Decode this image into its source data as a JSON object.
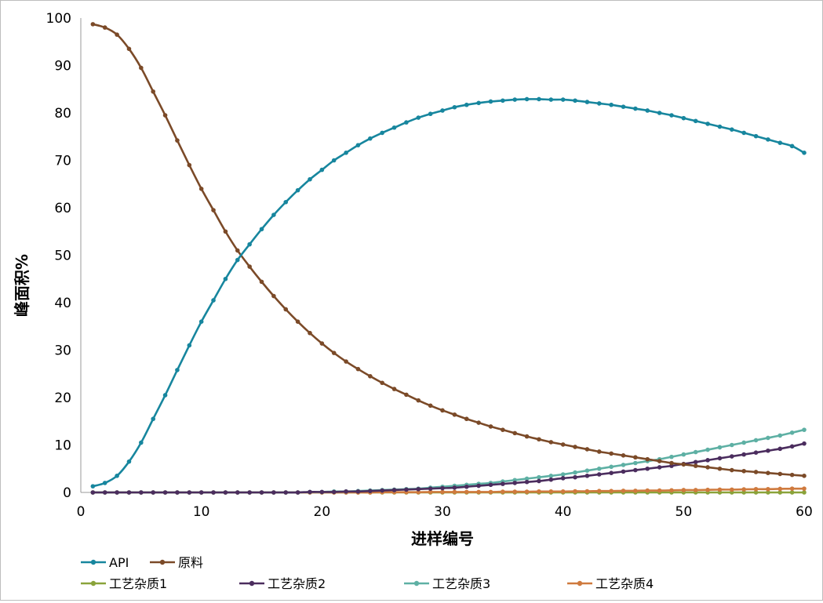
{
  "chart_data": {
    "type": "line",
    "title": "",
    "xlabel": "进样编号",
    "ylabel": "峰面积%",
    "xlim": [
      0,
      60
    ],
    "ylim": [
      0,
      100
    ],
    "xticks": [
      0,
      10,
      20,
      30,
      40,
      50,
      60
    ],
    "yticks": [
      0,
      10,
      20,
      30,
      40,
      50,
      60,
      70,
      80,
      90,
      100
    ],
    "grid": false,
    "legend_position": "bottom",
    "x": [
      1,
      2,
      3,
      4,
      5,
      6,
      7,
      8,
      9,
      10,
      11,
      12,
      13,
      14,
      15,
      16,
      17,
      18,
      19,
      20,
      21,
      22,
      23,
      24,
      25,
      26,
      27,
      28,
      29,
      30,
      31,
      32,
      33,
      34,
      35,
      36,
      37,
      38,
      39,
      40,
      41,
      42,
      43,
      44,
      45,
      46,
      47,
      48,
      49,
      50,
      51,
      52,
      53,
      54,
      55,
      56,
      57,
      58,
      59,
      60
    ],
    "series": [
      {
        "name": "API",
        "color": "#17869e",
        "values": [
          1.3,
          2.0,
          3.5,
          6.5,
          10.5,
          15.5,
          20.5,
          25.8,
          31.0,
          36.0,
          40.5,
          45.0,
          49.0,
          52.3,
          55.5,
          58.5,
          61.2,
          63.7,
          66.0,
          68.0,
          70.0,
          71.6,
          73.2,
          74.6,
          75.8,
          76.9,
          78.0,
          79.0,
          79.8,
          80.5,
          81.2,
          81.7,
          82.1,
          82.4,
          82.6,
          82.8,
          82.9,
          82.9,
          82.8,
          82.8,
          82.6,
          82.3,
          82.0,
          81.7,
          81.3,
          80.9,
          80.5,
          80.0,
          79.5,
          78.9,
          78.3,
          77.7,
          77.1,
          76.5,
          75.8,
          75.1,
          74.4,
          73.7,
          73.0,
          71.6
        ]
      },
      {
        "name": "原料",
        "color": "#7b4a28",
        "values": [
          98.7,
          98.0,
          96.5,
          93.5,
          89.5,
          84.5,
          79.5,
          74.2,
          69.0,
          64.0,
          59.5,
          55.0,
          51.0,
          47.6,
          44.4,
          41.4,
          38.6,
          36.0,
          33.6,
          31.4,
          29.4,
          27.6,
          26.0,
          24.5,
          23.1,
          21.8,
          20.6,
          19.4,
          18.3,
          17.3,
          16.4,
          15.5,
          14.7,
          13.9,
          13.2,
          12.5,
          11.8,
          11.2,
          10.6,
          10.1,
          9.6,
          9.1,
          8.6,
          8.2,
          7.8,
          7.4,
          7.0,
          6.6,
          6.2,
          5.9,
          5.6,
          5.3,
          5.0,
          4.7,
          4.5,
          4.3,
          4.1,
          3.9,
          3.7,
          3.5
        ]
      },
      {
        "name": "工艺杂质1",
        "color": "#8aa33a",
        "values": [
          0,
          0,
          0,
          0,
          0,
          0,
          0,
          0,
          0,
          0,
          0,
          0,
          0,
          0,
          0,
          0,
          0,
          0,
          0,
          0,
          0,
          0,
          0,
          0,
          0,
          0,
          0,
          0,
          0,
          0,
          0,
          0,
          0,
          0,
          0,
          0,
          0,
          0,
          0,
          0,
          0,
          0,
          0,
          0,
          0,
          0,
          0,
          0,
          0,
          0,
          0,
          0,
          0,
          0,
          0,
          0,
          0,
          0,
          0,
          0
        ]
      },
      {
        "name": "工艺杂质2",
        "color": "#4b2d5e",
        "values": [
          0,
          0,
          0,
          0,
          0,
          0,
          0,
          0,
          0,
          0,
          0,
          0,
          0,
          0,
          0,
          0,
          0,
          0,
          0.1,
          0.1,
          0.1,
          0.2,
          0.2,
          0.3,
          0.4,
          0.5,
          0.6,
          0.7,
          0.8,
          0.9,
          1.0,
          1.2,
          1.4,
          1.6,
          1.8,
          2.0,
          2.2,
          2.4,
          2.7,
          3.0,
          3.2,
          3.5,
          3.8,
          4.1,
          4.4,
          4.7,
          5.0,
          5.3,
          5.6,
          6.0,
          6.4,
          6.8,
          7.2,
          7.6,
          8.0,
          8.4,
          8.8,
          9.2,
          9.7,
          10.3
        ]
      },
      {
        "name": "工艺杂质3",
        "color": "#5eb0a4",
        "values": [
          0,
          0,
          0,
          0,
          0,
          0,
          0,
          0,
          0,
          0,
          0,
          0,
          0,
          0,
          0,
          0,
          0,
          0,
          0.1,
          0.1,
          0.2,
          0.2,
          0.3,
          0.4,
          0.5,
          0.6,
          0.7,
          0.8,
          1.0,
          1.2,
          1.4,
          1.6,
          1.8,
          2.0,
          2.3,
          2.6,
          2.9,
          3.2,
          3.5,
          3.8,
          4.2,
          4.6,
          5.0,
          5.4,
          5.8,
          6.2,
          6.6,
          7.0,
          7.5,
          8.0,
          8.5,
          9.0,
          9.5,
          10.0,
          10.5,
          11.0,
          11.5,
          12.0,
          12.6,
          13.2
        ]
      },
      {
        "name": "工艺杂质4",
        "color": "#cf7a3e",
        "values": [
          0,
          0,
          0,
          0,
          0,
          0,
          0,
          0,
          0,
          0,
          0,
          0,
          0,
          0,
          0,
          0,
          0,
          0,
          0,
          0,
          0,
          0,
          0,
          0,
          0.05,
          0.05,
          0.05,
          0.05,
          0.1,
          0.1,
          0.1,
          0.1,
          0.1,
          0.1,
          0.15,
          0.15,
          0.15,
          0.2,
          0.2,
          0.2,
          0.25,
          0.25,
          0.3,
          0.3,
          0.35,
          0.35,
          0.4,
          0.4,
          0.45,
          0.5,
          0.5,
          0.55,
          0.6,
          0.6,
          0.65,
          0.7,
          0.7,
          0.75,
          0.8,
          0.8
        ]
      }
    ]
  }
}
